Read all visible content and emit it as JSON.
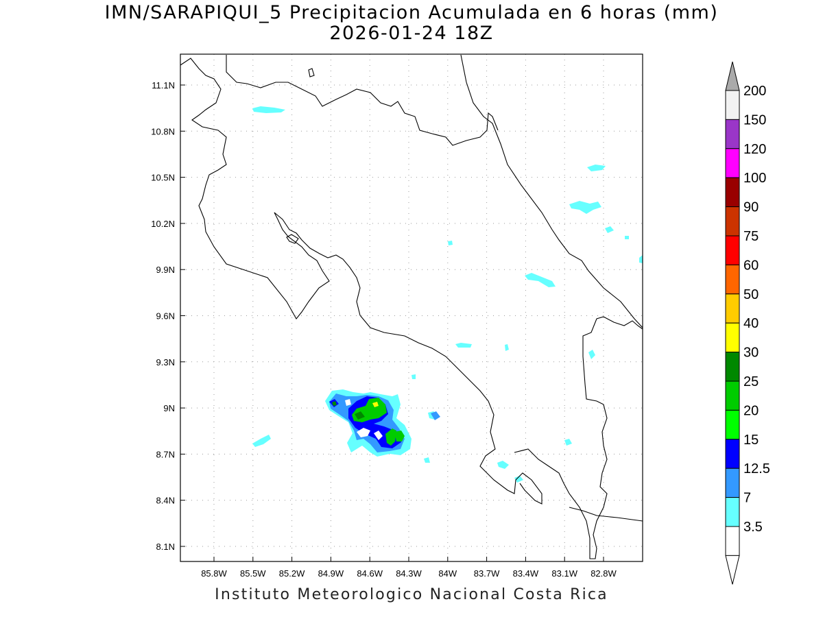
{
  "title_line1": "IMN/SARAPIQUI_5 Precipitacion Acumulada en 6 horas (mm)",
  "title_line2": "2026-01-24 18Z",
  "footer": "Instituto Meteorologico Nacional Costa Rica",
  "axes": {
    "lon_ticks": [
      "85.8W",
      "85.5W",
      "85.2W",
      "84.9W",
      "84.6W",
      "84.3W",
      "84W",
      "83.7W",
      "83.4W",
      "83.1W",
      "82.8W"
    ],
    "lat_ticks": [
      "11.1N",
      "10.8N",
      "10.5N",
      "10.2N",
      "9.9N",
      "9.6N",
      "9.3N",
      "9N",
      "8.7N",
      "8.4N",
      "8.1N"
    ],
    "grid": true,
    "grid_style": "dotted"
  },
  "colorbar": {
    "labels": [
      "200",
      "150",
      "120",
      "100",
      "90",
      "75",
      "60",
      "50",
      "40",
      "30",
      "25",
      "20",
      "15",
      "12.5",
      "7",
      "3.5"
    ],
    "colors": [
      "#f2f2f2",
      "#9a36c8",
      "#ff00ff",
      "#990000",
      "#cc3300",
      "#ff0000",
      "#ff6600",
      "#ffcc00",
      "#ffff00",
      "#008800",
      "#00cc00",
      "#00ff00",
      "#0000ff",
      "#3399ff",
      "#66ffff",
      "#ffffff"
    ],
    "top_arrow_color": "#aaaaaa",
    "bottom_arrow_color": "#ffffff"
  }
}
